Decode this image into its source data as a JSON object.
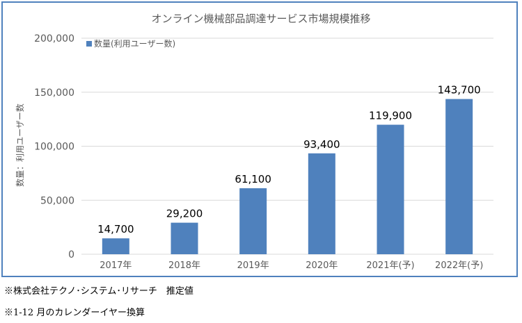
{
  "chart_data": {
    "type": "bar",
    "title": "オンライン機械部品調達サービス市場規模推移",
    "ylabel": "数量：利用ユーザー数",
    "categories": [
      "2017年",
      "2018年",
      "2019年",
      "2020年",
      "2021年(予)",
      "2022年(予)"
    ],
    "series": [
      {
        "name": "数量(利用ユーザー数)",
        "values": [
          14700,
          29200,
          61100,
          93400,
          119900,
          143700
        ],
        "value_labels": [
          "14,700",
          "29,200",
          "61,100",
          "93,400",
          "119,900",
          "143,700"
        ]
      }
    ],
    "ylim": [
      0,
      200000
    ],
    "yticks": [
      0,
      50000,
      100000,
      150000,
      200000
    ],
    "ytick_labels": [
      "0",
      "50,000",
      "100,000",
      "150,000",
      "200,000"
    ],
    "legend_position": "top-left",
    "grid": true,
    "bar_color": "#4f81bd",
    "grid_color": "#d9d9d9",
    "frame_color": "#4f81bd"
  },
  "notes": [
    "※株式会社テクノ･システム･リサーチ　推定値",
    "※1-12 月のカレンダーイヤー換算"
  ]
}
